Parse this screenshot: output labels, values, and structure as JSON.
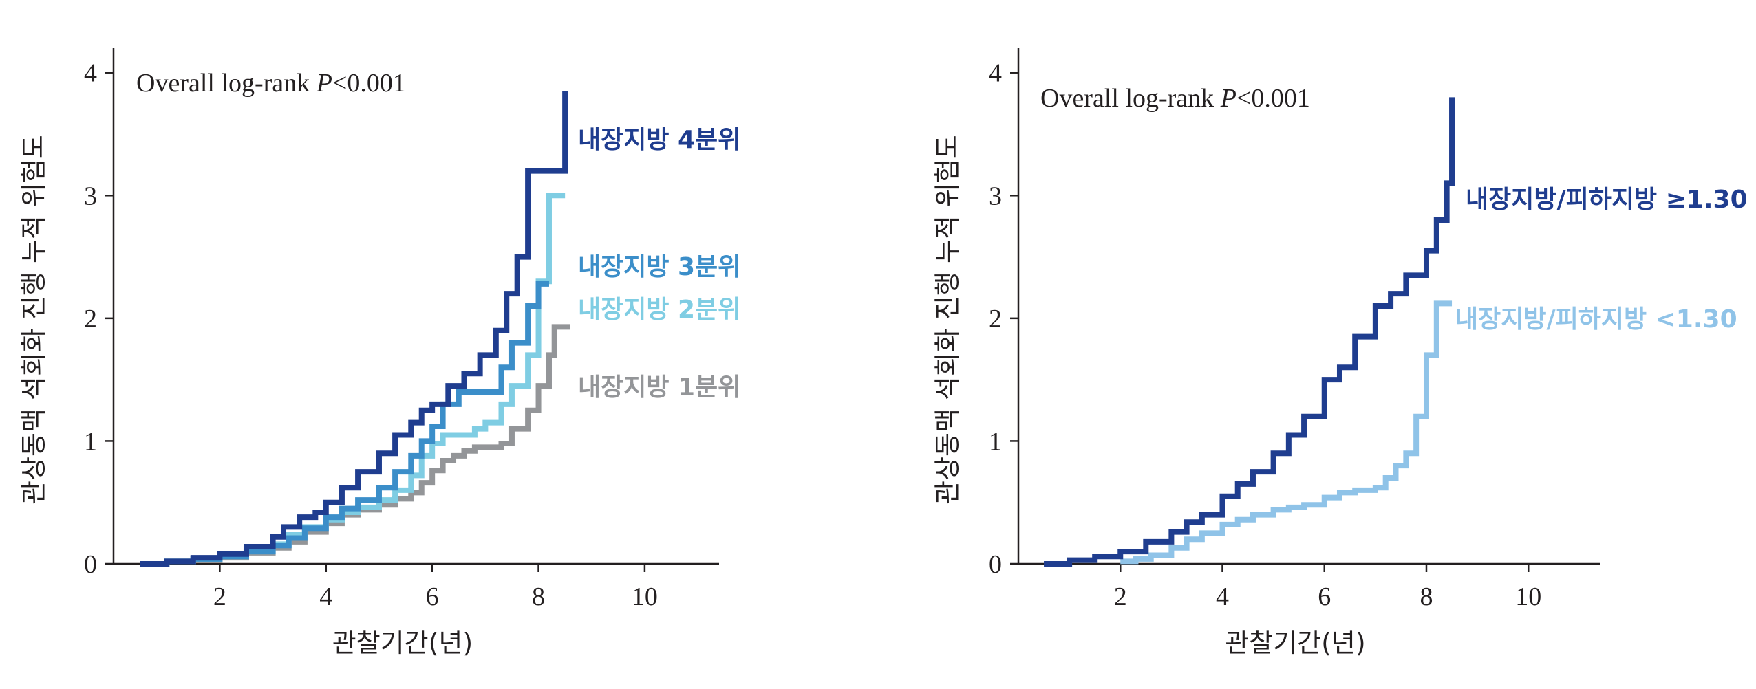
{
  "chart_data": [
    {
      "type": "line",
      "step": true,
      "annotation_prefix": "Overall log-rank ",
      "annotation_p": "P",
      "annotation_suffix": "<0.001",
      "xlabel": "관찰기간(년)",
      "ylabel": "관상동맥 석회화 진행 누적 위험도",
      "xlim": [
        0,
        11.4
      ],
      "ylim": [
        0,
        4.2
      ],
      "xticks": [
        "2",
        "4",
        "6",
        "8",
        "10"
      ],
      "yticks": [
        "0",
        "1",
        "2",
        "3",
        "4"
      ],
      "series": [
        {
          "name": "내장지방 1분위",
          "color": "#939598",
          "x": [
            0.5,
            1.0,
            1.5,
            2.0,
            2.5,
            3.0,
            3.3,
            3.6,
            4.0,
            4.3,
            4.6,
            5.0,
            5.3,
            5.6,
            5.8,
            6.0,
            6.2,
            6.4,
            6.6,
            6.8,
            7.0,
            7.3,
            7.5,
            7.8,
            8.0,
            8.2,
            8.3,
            8.6
          ],
          "y": [
            0.0,
            0.02,
            0.03,
            0.05,
            0.09,
            0.13,
            0.18,
            0.26,
            0.33,
            0.4,
            0.44,
            0.48,
            0.53,
            0.58,
            0.66,
            0.76,
            0.84,
            0.88,
            0.92,
            0.95,
            0.95,
            0.98,
            1.1,
            1.25,
            1.45,
            1.7,
            1.93,
            1.93
          ]
        },
        {
          "name": "내장지방 2분위",
          "color": "#7fcde3",
          "x": [
            0.5,
            1.0,
            1.5,
            2.0,
            2.5,
            3.0,
            3.3,
            3.6,
            4.0,
            4.3,
            4.6,
            5.0,
            5.3,
            5.6,
            5.8,
            6.0,
            6.2,
            6.4,
            6.6,
            6.8,
            7.0,
            7.3,
            7.5,
            7.8,
            8.0,
            8.2,
            8.5
          ],
          "y": [
            0.0,
            0.02,
            0.04,
            0.06,
            0.1,
            0.16,
            0.24,
            0.3,
            0.36,
            0.42,
            0.46,
            0.52,
            0.6,
            0.72,
            0.88,
            0.98,
            1.05,
            1.05,
            1.05,
            1.1,
            1.15,
            1.3,
            1.45,
            1.7,
            2.3,
            3.0,
            3.0
          ]
        },
        {
          "name": "내장지방 3분위",
          "color": "#3b8ec9",
          "x": [
            0.5,
            1.0,
            1.5,
            2.0,
            2.5,
            3.0,
            3.3,
            3.6,
            4.0,
            4.3,
            4.6,
            5.0,
            5.3,
            5.6,
            5.8,
            6.0,
            6.2,
            6.5,
            7.0,
            7.3,
            7.5,
            7.8,
            8.0,
            8.2
          ],
          "y": [
            0.0,
            0.02,
            0.04,
            0.06,
            0.1,
            0.15,
            0.21,
            0.29,
            0.38,
            0.45,
            0.52,
            0.62,
            0.75,
            0.88,
            1.0,
            1.12,
            1.3,
            1.4,
            1.4,
            1.6,
            1.8,
            2.1,
            2.28,
            2.28
          ]
        },
        {
          "name": "내장지방 4분위",
          "color": "#1f3d8f",
          "x": [
            0.5,
            1.0,
            1.5,
            2.0,
            2.5,
            3.0,
            3.2,
            3.5,
            3.8,
            4.0,
            4.3,
            4.6,
            5.0,
            5.3,
            5.6,
            5.8,
            6.0,
            6.3,
            6.6,
            6.9,
            7.2,
            7.4,
            7.6,
            7.8,
            8.0,
            8.3,
            8.5
          ],
          "y": [
            0.0,
            0.02,
            0.05,
            0.08,
            0.14,
            0.22,
            0.3,
            0.38,
            0.42,
            0.5,
            0.62,
            0.75,
            0.9,
            1.05,
            1.15,
            1.25,
            1.3,
            1.45,
            1.55,
            1.7,
            1.9,
            2.2,
            2.5,
            3.2,
            3.2,
            3.2,
            3.85
          ]
        }
      ]
    },
    {
      "type": "line",
      "step": true,
      "annotation_prefix": "Overall log-rank ",
      "annotation_p": "P",
      "annotation_suffix": "<0.001",
      "xlabel": "관찰기간(년)",
      "ylabel": "관상동맥 석회화 진행 누적 위험도",
      "xlim": [
        0,
        11.4
      ],
      "ylim": [
        0,
        4.2
      ],
      "xticks": [
        "2",
        "4",
        "6",
        "8",
        "10"
      ],
      "yticks": [
        "0",
        "1",
        "2",
        "3",
        "4"
      ],
      "series": [
        {
          "name": "내장지방/피하지방 <1.30",
          "color": "#8fc3e8",
          "x": [
            2.0,
            2.3,
            2.6,
            3.0,
            3.3,
            3.6,
            4.0,
            4.3,
            4.6,
            5.0,
            5.3,
            5.6,
            6.0,
            6.3,
            6.6,
            7.0,
            7.2,
            7.4,
            7.6,
            7.8,
            8.0,
            8.2,
            8.5
          ],
          "y": [
            0.02,
            0.04,
            0.07,
            0.13,
            0.2,
            0.25,
            0.32,
            0.36,
            0.4,
            0.44,
            0.46,
            0.48,
            0.54,
            0.58,
            0.6,
            0.62,
            0.7,
            0.8,
            0.9,
            1.2,
            1.7,
            2.12,
            2.12
          ]
        },
        {
          "name": "내장지방/피하지방 ≥1.30",
          "color": "#1f3d8f",
          "x": [
            0.5,
            1.0,
            1.5,
            2.0,
            2.5,
            3.0,
            3.3,
            3.6,
            4.0,
            4.3,
            4.6,
            5.0,
            5.3,
            5.6,
            6.0,
            6.3,
            6.6,
            7.0,
            7.3,
            7.6,
            8.0,
            8.2,
            8.4,
            8.5
          ],
          "y": [
            0.0,
            0.03,
            0.06,
            0.1,
            0.18,
            0.26,
            0.34,
            0.4,
            0.55,
            0.65,
            0.75,
            0.9,
            1.05,
            1.2,
            1.5,
            1.6,
            1.85,
            2.1,
            2.2,
            2.35,
            2.55,
            2.8,
            3.1,
            3.8
          ]
        }
      ]
    }
  ]
}
